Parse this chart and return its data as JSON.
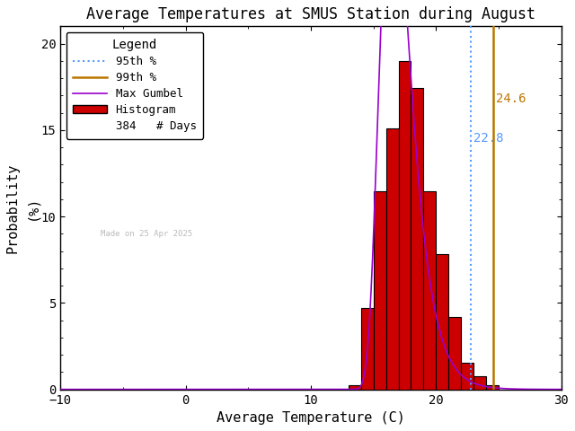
{
  "title": "Average Temperatures at SMUS Station during August",
  "xlabel": "Average Temperature (C)",
  "ylabel": "Probability\n(%)",
  "xlim": [
    -10,
    30
  ],
  "ylim": [
    0,
    21
  ],
  "yticks": [
    0,
    5,
    10,
    15,
    20
  ],
  "xticks": [
    -10,
    0,
    10,
    20,
    30
  ],
  "bar_edges": [
    13,
    14,
    15,
    16,
    17,
    18,
    19,
    20,
    21,
    22,
    23,
    24,
    25
  ],
  "bar_heights": [
    0.26,
    4.69,
    11.46,
    15.1,
    19.01,
    17.45,
    11.46,
    7.81,
    4.17,
    1.56,
    0.78,
    0.26
  ],
  "percentile_95": 22.8,
  "percentile_99": 24.6,
  "gumbel_mu": 16.5,
  "gumbel_beta": 1.2,
  "n_days": 384,
  "made_on": "Made on 25 Apr 2025",
  "bar_color": "#cc0000",
  "bar_edge_color": "#000000",
  "line_95_color": "#5599ff",
  "line_99_color": "#bb7700",
  "gumbel_color": "#9900cc",
  "text_95_color": "#5599ff",
  "text_99_color": "#bb7700",
  "made_on_color": "#bbbbbb",
  "background_color": "#ffffff",
  "title_fontsize": 12,
  "axis_fontsize": 11,
  "tick_fontsize": 10,
  "legend_fontsize": 9
}
